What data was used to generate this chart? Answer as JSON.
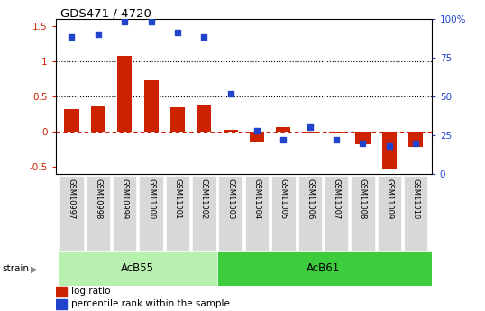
{
  "title": "GDS471 / 4720",
  "samples": [
    "GSM10997",
    "GSM10998",
    "GSM10999",
    "GSM11000",
    "GSM11001",
    "GSM11002",
    "GSM11003",
    "GSM11004",
    "GSM11005",
    "GSM11006",
    "GSM11007",
    "GSM11008",
    "GSM11009",
    "GSM11010"
  ],
  "log_ratio": [
    0.32,
    0.36,
    1.07,
    0.73,
    0.35,
    0.37,
    0.03,
    -0.14,
    0.06,
    -0.02,
    -0.02,
    -0.18,
    -0.52,
    -0.22
  ],
  "percentile_rank": [
    88,
    90,
    98,
    98,
    91,
    88,
    52,
    28,
    22,
    30,
    22,
    20,
    18,
    20
  ],
  "groups": [
    {
      "label": "AcB55",
      "start": 0,
      "end": 5,
      "color": "#b8f0b0"
    },
    {
      "label": "AcB61",
      "start": 6,
      "end": 13,
      "color": "#3ccc3c"
    }
  ],
  "ylim_left": [
    -0.6,
    1.6
  ],
  "ylim_right": [
    0,
    100
  ],
  "yticks_left": [
    -0.5,
    0.0,
    0.5,
    1.0,
    1.5
  ],
  "ytick_labels_left": [
    "-0.5",
    "0",
    "0.5",
    "1",
    "1.5"
  ],
  "yticks_right": [
    0,
    25,
    50,
    75,
    100
  ],
  "ytick_labels_right": [
    "0",
    "25",
    "50",
    "75",
    "100%"
  ],
  "hlines": [
    0.5,
    1.0
  ],
  "bar_color": "#cc2200",
  "scatter_color": "#2244cc",
  "zero_line_color": "#cc2200",
  "bar_width": 0.55,
  "scatter_size": 14
}
